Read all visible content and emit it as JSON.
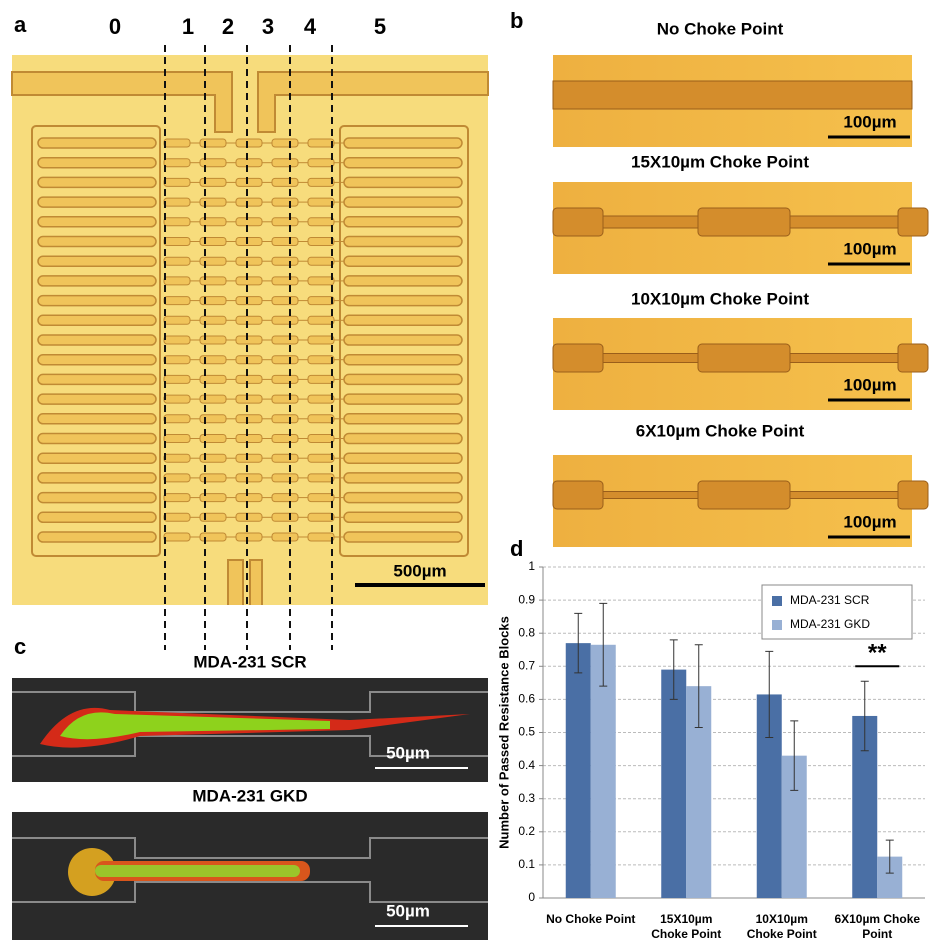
{
  "panels": {
    "a": {
      "label": "a",
      "columns": [
        "0",
        "1",
        "2",
        "3",
        "4",
        "5"
      ],
      "scale_bar": "500µm"
    },
    "b": {
      "label": "b",
      "titles": [
        "No Choke Point",
        "15X10µm Choke Point",
        "10X10µm  Choke Point",
        "6X10µm Choke Point"
      ],
      "scale_bar": "100µm"
    },
    "c": {
      "label": "c",
      "titles": [
        "MDA-231 SCR",
        "MDA-231 GKD"
      ],
      "scale_bar": "50µm"
    },
    "d": {
      "label": "d"
    }
  },
  "chart_data": {
    "type": "bar",
    "y_label": "Number of Passed Resistance Blocks",
    "categories": [
      "No Choke Point",
      "15X10µm Choke Point",
      "10X10µm Choke Point",
      "6X10µm Choke Point"
    ],
    "series": [
      {
        "name": "MDA-231 SCR",
        "color": "#4a6fa5",
        "values": [
          0.77,
          0.69,
          0.615,
          0.55
        ],
        "errors": [
          0.09,
          0.09,
          0.13,
          0.105
        ]
      },
      {
        "name": "MDA-231 GKD",
        "color": "#98b0d4",
        "values": [
          0.765,
          0.64,
          0.43,
          0.125
        ],
        "errors": [
          0.125,
          0.125,
          0.105,
          0.05
        ]
      }
    ],
    "ylim": [
      0,
      1
    ],
    "yticks": [
      0,
      0.1,
      0.2,
      0.3,
      0.4,
      0.5,
      0.6,
      0.7,
      0.8,
      0.9,
      1
    ],
    "grid": true,
    "legend": "upper right",
    "annotations": [
      {
        "text": "**",
        "category": 3
      }
    ]
  }
}
